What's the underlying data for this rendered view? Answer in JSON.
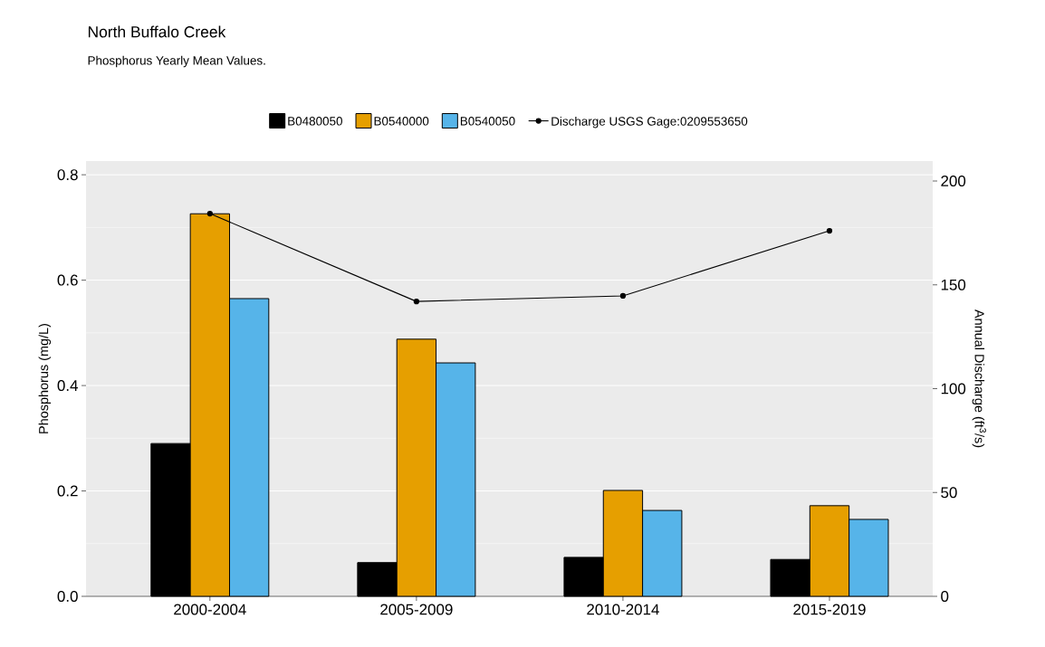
{
  "chart_data": {
    "type": "bar",
    "title": "North Buffalo Creek",
    "subtitle": "Phosphorus Yearly Mean Values.",
    "ylabel": "Phosphorus (mg/L)",
    "y2label": "Annual Discharge (ft$^{3}$/s)",
    "categories": [
      "2000-2004",
      "2005-2009",
      "2010-2014",
      "2015-2019"
    ],
    "series": [
      {
        "name": "B0480050",
        "color": "#000000",
        "values": [
          0.29,
          0.064,
          0.074,
          0.07
        ]
      },
      {
        "name": "B0540000",
        "color": "#e69f00",
        "values": [
          0.726,
          0.488,
          0.201,
          0.172
        ]
      },
      {
        "name": "B0540050",
        "color": "#56b4e9",
        "values": [
          0.565,
          0.443,
          0.163,
          0.146
        ]
      },
      {
        "name": "Discharge USGS Gage:0209553650",
        "type": "line",
        "axis": "y2",
        "color": "#000000",
        "marker": "circle",
        "values": [
          184.3,
          142,
          144.7,
          176
        ]
      }
    ],
    "ylim": [
      0,
      0.826
    ],
    "yticks": [
      {
        "value": 0,
        "label": "0.0"
      },
      0.2,
      0.4,
      0.6,
      0.8
    ],
    "y2lim": [
      0,
      209.6
    ],
    "y2ticks": [
      0,
      50,
      100,
      150,
      200
    ],
    "grid": "y",
    "legend": "top"
  }
}
